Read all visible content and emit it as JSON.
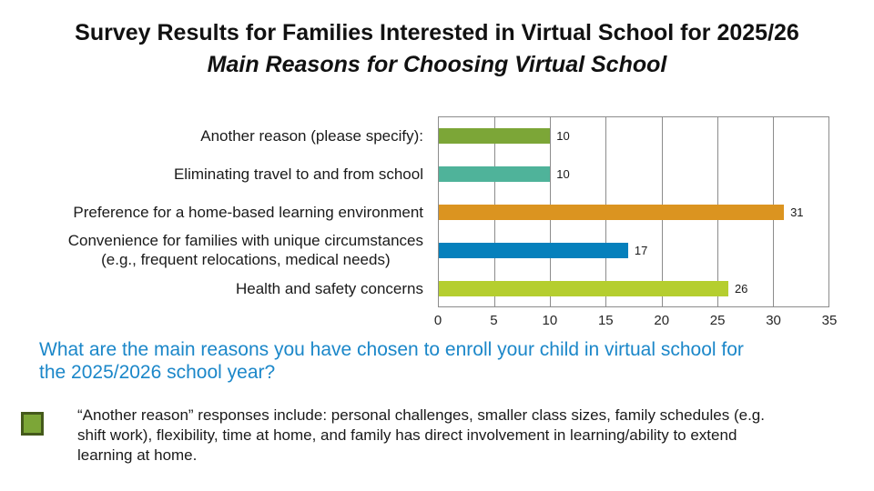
{
  "header": {
    "title": "Survey Results for Families Interested in Virtual School for 2025/26",
    "subtitle": "Main Reasons for Choosing Virtual School"
  },
  "chart_data": {
    "type": "bar",
    "orientation": "horizontal",
    "title": "",
    "xlabel": "",
    "ylabel": "",
    "categories": [
      "Another reason (please specify):",
      "Eliminating travel to and from school",
      "Preference for a home-based learning environment",
      "Convenience for families with unique circumstances (e.g., frequent relocations, medical needs)",
      "Health and safety concerns"
    ],
    "label_lines": [
      [
        "Another reason (please specify):"
      ],
      [
        "Eliminating travel to and from school"
      ],
      [
        "Preference for a home-based learning environment"
      ],
      [
        "Convenience for families with unique circumstances",
        "(e.g., frequent relocations, medical needs)"
      ],
      [
        "Health and safety concerns"
      ]
    ],
    "values": [
      10,
      10,
      31,
      17,
      26
    ],
    "bar_colors": [
      "#7CA637",
      "#4FB39A",
      "#DB9420",
      "#0680BC",
      "#B5CE2F"
    ],
    "xlim": [
      0,
      35
    ],
    "xticks": [
      0,
      5,
      10,
      15,
      20,
      25,
      30,
      35
    ],
    "gridlines": "vertical",
    "data_labels": true,
    "legend_position": "none"
  },
  "question": {
    "lines": [
      "What are the main reasons you have chosen to enroll your child in virtual school for",
      "the 2025/2026 school year?"
    ],
    "color": "#1B87C9"
  },
  "note": {
    "swatch_color": "#7CA637",
    "swatch_border": "#44591B",
    "lines": [
      "“Another reason” responses include: personal challenges, smaller class sizes, family schedules (e.g.",
      "shift work), flexibility, time at home, and family has direct involvement in learning/ability to extend",
      "learning at home."
    ]
  },
  "style_colors": {
    "grid": "#8C8C8C",
    "text": "#1A1A1A"
  }
}
